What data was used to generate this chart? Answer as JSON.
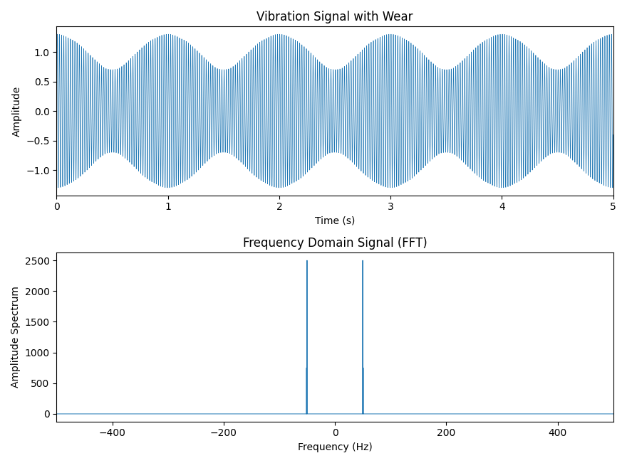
{
  "title_top": "Vibration Signal with Wear",
  "title_bottom": "Frequency Domain Signal (FFT)",
  "xlabel_top": "Time (s)",
  "ylabel_top": "Amplitude",
  "xlabel_bottom": "Frequency (Hz)",
  "ylabel_bottom": "Amplitude Spectrum",
  "line_color": "#1f77b4",
  "sampling_rate": 1000,
  "duration": 5.0,
  "freq1": 50.0,
  "freq2": 51.0,
  "amp1": 1.0,
  "amp2": 0.3,
  "figsize": [
    8.8,
    6.51
  ],
  "dpi": 100
}
